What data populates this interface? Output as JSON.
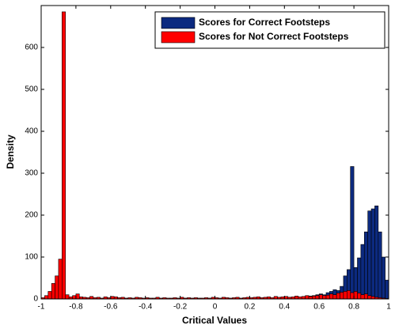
{
  "chart_data": {
    "type": "histogram",
    "xlabel": "Critical Values",
    "ylabel": "Density",
    "bins": [
      -1,
      -0.98,
      -0.96,
      -0.94,
      -0.92,
      -0.9,
      -0.88,
      -0.86,
      -0.84,
      -0.82,
      -0.8,
      -0.78,
      -0.76,
      -0.74,
      -0.72,
      -0.7,
      -0.68,
      -0.66,
      -0.64,
      -0.62,
      -0.6,
      -0.58,
      -0.56,
      -0.54,
      -0.52,
      -0.5,
      -0.48,
      -0.46,
      -0.44,
      -0.42,
      -0.4,
      -0.38,
      -0.36,
      -0.34,
      -0.32,
      -0.3,
      -0.28,
      -0.26,
      -0.24,
      -0.22,
      -0.2,
      -0.18,
      -0.16,
      -0.14,
      -0.12,
      -0.1,
      -0.08,
      -0.06,
      -0.04,
      -0.02,
      0,
      0.02,
      0.04,
      0.06,
      0.08,
      0.1,
      0.12,
      0.14,
      0.16,
      0.18,
      0.2,
      0.22,
      0.24,
      0.26,
      0.28,
      0.3,
      0.32,
      0.34,
      0.36,
      0.38,
      0.4,
      0.42,
      0.44,
      0.46,
      0.48,
      0.5,
      0.52,
      0.54,
      0.56,
      0.58,
      0.6,
      0.62,
      0.64,
      0.66,
      0.68,
      0.7,
      0.72,
      0.74,
      0.76,
      0.78,
      0.8,
      0.82,
      0.84,
      0.86,
      0.88,
      0.9,
      0.92,
      0.94,
      0.96,
      0.98,
      1
    ],
    "series": [
      {
        "name": "Scores for Correct Footsteps",
        "color": "#0c2a80",
        "values": [
          0,
          0,
          0,
          0,
          0,
          0,
          0,
          0,
          0,
          0,
          0,
          0,
          0,
          0,
          0,
          0,
          0,
          0,
          0,
          0,
          0,
          0,
          0,
          0,
          0,
          0,
          0,
          0,
          0,
          0,
          0,
          0,
          0,
          0,
          0,
          0,
          0,
          0,
          0,
          0,
          0,
          0,
          0,
          0,
          0,
          0,
          0,
          0,
          0,
          0,
          0,
          0,
          0,
          0,
          0,
          0,
          0,
          0,
          0,
          0,
          0,
          1,
          0,
          1,
          2,
          1,
          2,
          3,
          2,
          3,
          3,
          4,
          3,
          5,
          4,
          6,
          5,
          7,
          8,
          10,
          12,
          10,
          15,
          18,
          22,
          20,
          30,
          55,
          70,
          316,
          75,
          98,
          130,
          160,
          210,
          215,
          222,
          160,
          100,
          45
        ]
      },
      {
        "name": "Scores for Not Correct Footsteps",
        "color": "#ff0000",
        "values": [
          3,
          8,
          18,
          37,
          55,
          95,
          685,
          10,
          5,
          8,
          12,
          5,
          4,
          3,
          6,
          3,
          4,
          2,
          5,
          3,
          6,
          5,
          3,
          4,
          2,
          3,
          2,
          4,
          3,
          2,
          3,
          2,
          2,
          4,
          2,
          3,
          2,
          2,
          3,
          2,
          4,
          2,
          3,
          2,
          3,
          2,
          2,
          3,
          2,
          4,
          3,
          2,
          4,
          3,
          2,
          3,
          4,
          2,
          3,
          4,
          3,
          4,
          5,
          3,
          4,
          5,
          3,
          6,
          4,
          5,
          6,
          4,
          5,
          7,
          5,
          6,
          8,
          6,
          7,
          8,
          10,
          8,
          9,
          12,
          10,
          14,
          16,
          18,
          20,
          15,
          18,
          14,
          10,
          12,
          8,
          6,
          4,
          3,
          2,
          1
        ]
      }
    ],
    "xlim": [
      -1,
      1
    ],
    "ylim": [
      0,
      700
    ],
    "xticks": [
      -1,
      -0.8,
      -0.6,
      -0.4,
      -0.2,
      0,
      0.2,
      0.4,
      0.6,
      0.8,
      1
    ],
    "yticks": [
      0,
      100,
      200,
      300,
      400,
      500,
      600
    ],
    "legend": "upper right"
  }
}
